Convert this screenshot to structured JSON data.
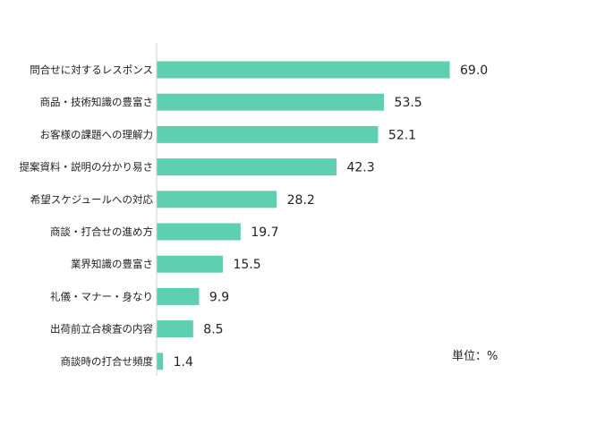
{
  "chart_data": {
    "type": "bar",
    "orientation": "horizontal",
    "categories": [
      "問合せに対するレスポンス",
      "商品・技術知識の豊富さ",
      "お客様の課題への理解力",
      "提案資料・説明の分かり易さ",
      "希望スケジュールへの対応",
      "商談・打合せの進め方",
      "業界知識の豊富さ",
      "礼儀・マナー・身なり",
      "出荷前立合検査の内容",
      "商談時の打合せ頻度"
    ],
    "values": [
      69.0,
      53.5,
      52.1,
      42.3,
      28.2,
      19.7,
      15.5,
      9.9,
      8.5,
      1.4
    ],
    "value_labels": [
      "69.0",
      "53.5",
      "52.1",
      "42.3",
      "28.2",
      "19.7",
      "15.5",
      "9.9",
      "8.5",
      "1.4"
    ],
    "unit_note": "単位：%",
    "bar_color": "#5ecfb0",
    "axis_color": "#d0d0d0",
    "grid": false
  }
}
